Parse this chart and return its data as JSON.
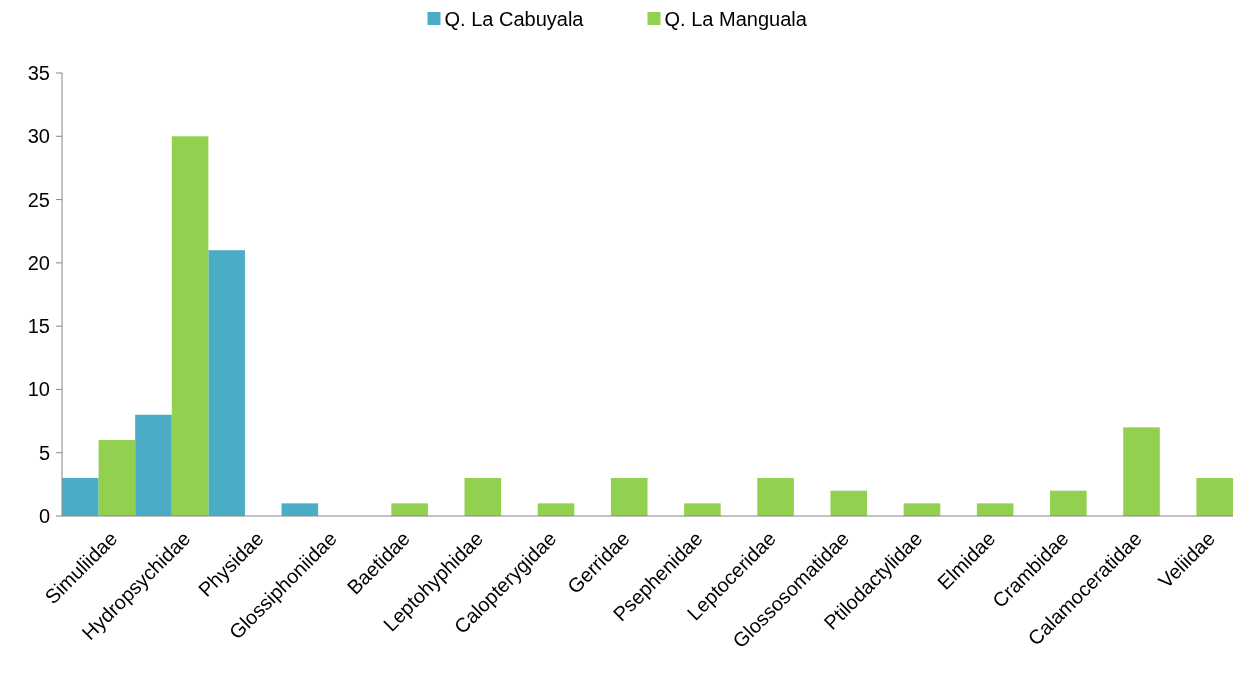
{
  "chart_data": {
    "type": "bar",
    "categories": [
      "Simuliidae",
      "Hydropsychidae",
      "Physidae",
      "Glossiphoniidae",
      "Baetidae",
      "Leptohyphidae",
      "Calopterygidae",
      "Gerridae",
      "Psephenidae",
      "Leptoceridae",
      "Glossosomatidae",
      "Ptilodactylidae",
      "Elmidae",
      "Crambidae",
      "Calamoceratidae",
      "Veliidae"
    ],
    "series": [
      {
        "name": "Q. La Cabuyala",
        "color": "#4bacc6",
        "values": [
          3,
          8,
          21,
          1,
          0,
          0,
          0,
          0,
          0,
          0,
          0,
          0,
          0,
          0,
          0,
          0
        ]
      },
      {
        "name": "Q. La Manguala",
        "color": "#92d050",
        "values": [
          6,
          30,
          0,
          0,
          1,
          3,
          1,
          3,
          1,
          3,
          2,
          1,
          1,
          2,
          7,
          3
        ]
      }
    ],
    "ylim": [
      0,
      35
    ],
    "yticks": [
      0,
      5,
      10,
      15,
      20,
      25,
      30,
      35
    ],
    "grid": false,
    "legend": "top"
  }
}
